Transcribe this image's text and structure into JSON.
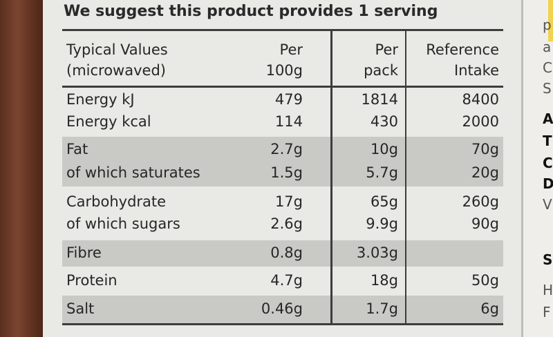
{
  "header": "We suggest this product provides 1 serving",
  "columns": {
    "name_line1": "Typical Values",
    "name_line2": "(microwaved)",
    "per100_line1": "Per",
    "per100_line2": "100g",
    "pack_line1": "Per",
    "pack_line2": "pack",
    "ri_line1": "Reference",
    "ri_line2": "Intake"
  },
  "rows": [
    {
      "name": "Energy kJ",
      "per100": "479",
      "pack": "1814",
      "ri": "8400"
    },
    {
      "name": "Energy kcal",
      "per100": "114",
      "pack": "430",
      "ri": "2000"
    },
    {
      "name": "Fat",
      "per100": "2.7g",
      "pack": "10g",
      "ri": "70g"
    },
    {
      "name": "of which saturates",
      "per100": "1.5g",
      "pack": "5.7g",
      "ri": "20g"
    },
    {
      "name": "Carbohydrate",
      "per100": "17g",
      "pack": "65g",
      "ri": "260g"
    },
    {
      "name": "of which sugars",
      "per100": "2.6g",
      "pack": "9.9g",
      "ri": "90g"
    },
    {
      "name": "Fibre",
      "per100": "0.8g",
      "pack": "3.03g",
      "ri": ""
    },
    {
      "name": "Protein",
      "per100": "4.7g",
      "pack": "18g",
      "ri": "50g"
    },
    {
      "name": "Salt",
      "per100": "0.46g",
      "pack": "1.7g",
      "ri": "6g"
    }
  ],
  "side_text": [
    "p",
    "a",
    "C",
    "S",
    "A",
    "T",
    "C",
    "D",
    "V",
    "S",
    "H",
    "F"
  ]
}
